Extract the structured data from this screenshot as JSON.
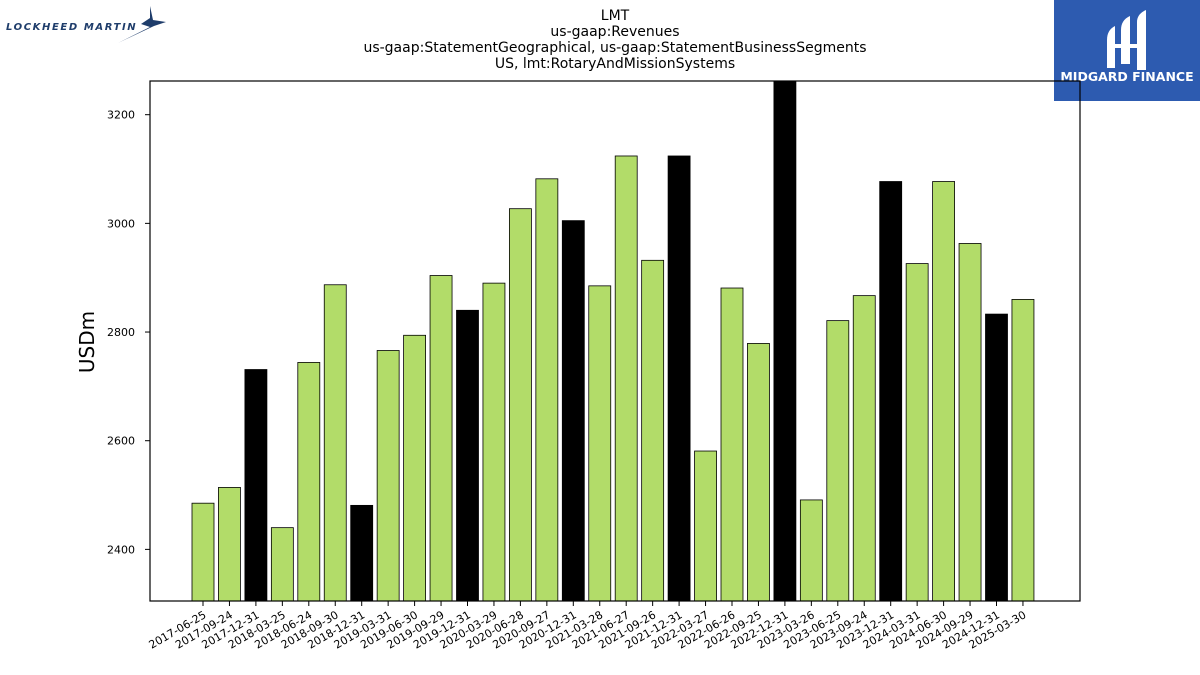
{
  "logos": {
    "left_text": "LOCKHEED MARTIN",
    "right_text": "MIDGARD FINANCE",
    "right_bg_color": "#2d5bb0"
  },
  "colors": {
    "bar_quarter": "#b2dc69",
    "bar_year_end": "#000000",
    "bar_edge": "#000000"
  },
  "chart_data": {
    "type": "bar",
    "title_lines": [
      "LMT",
      "us-gaap:Revenues",
      "us-gaap:StatementGeographical, us-gaap:StatementBusinessSegments",
      "US, lmt:RotaryAndMissionSystems"
    ],
    "xlabel": "",
    "ylabel": "USDm",
    "ylim": [
      2305,
      3262
    ],
    "yticks": [
      2400,
      2600,
      2800,
      3000,
      3200
    ],
    "grid": false,
    "categories": [
      "2017-06-25",
      "2017-09-24",
      "2017-12-31",
      "2018-03-25",
      "2018-06-24",
      "2018-09-30",
      "2018-12-31",
      "2019-03-31",
      "2019-06-30",
      "2019-09-29",
      "2019-12-31",
      "2020-03-29",
      "2020-06-28",
      "2020-09-27",
      "2020-12-31",
      "2021-03-28",
      "2021-06-27",
      "2021-09-26",
      "2021-12-31",
      "2022-03-27",
      "2022-06-26",
      "2022-09-25",
      "2022-12-31",
      "2023-03-26",
      "2023-06-25",
      "2023-09-24",
      "2023-12-31",
      "2024-03-31",
      "2024-06-30",
      "2024-09-29",
      "2024-12-31",
      "2025-03-30"
    ],
    "values": [
      2485,
      2514,
      2731,
      2440,
      2744,
      2887,
      2481,
      2766,
      2794,
      2904,
      2840,
      2890,
      3027,
      3082,
      3005,
      2885,
      3124,
      2932,
      3124,
      2581,
      2881,
      2779,
      3262,
      2491,
      2821,
      2867,
      3077,
      2926,
      3077,
      2963,
      2833,
      2860
    ],
    "year_end": [
      false,
      false,
      true,
      false,
      false,
      false,
      true,
      false,
      false,
      false,
      true,
      false,
      false,
      false,
      true,
      false,
      false,
      false,
      true,
      false,
      false,
      false,
      true,
      false,
      false,
      false,
      true,
      false,
      false,
      false,
      true,
      false
    ]
  }
}
